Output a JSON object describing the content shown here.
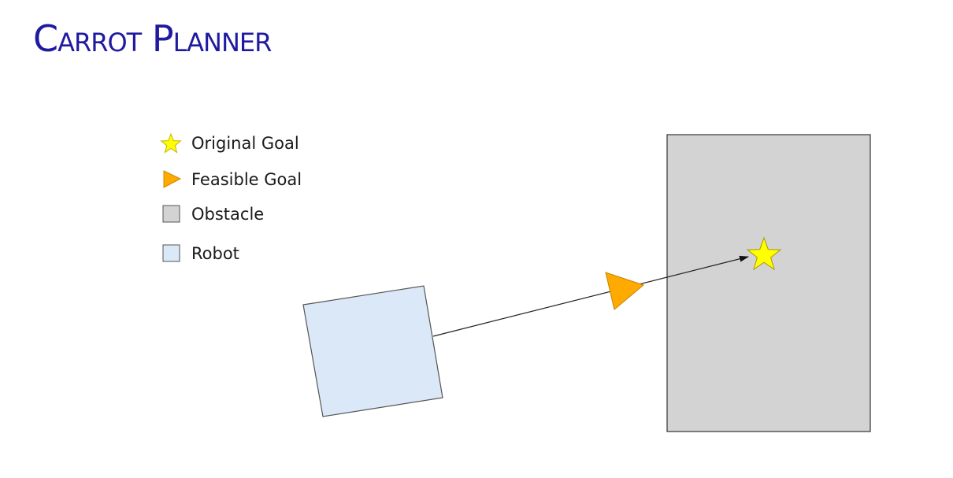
{
  "title": "Carrot Planner",
  "legend": [
    {
      "label": "Original Goal",
      "icon": "star-icon",
      "color": "#ffff00"
    },
    {
      "label": "Feasible Goal",
      "icon": "triangle-icon",
      "color": "#ffaa00"
    },
    {
      "label": "Obstacle",
      "icon": "square-icon",
      "color": "#d3d3d3"
    },
    {
      "label": "Robot",
      "icon": "square-icon",
      "color": "#dbe8f8"
    }
  ],
  "colors": {
    "title": "#1f1aa0",
    "star": "#ffff00",
    "triangle": "#ffaa00",
    "obstacle": "#d3d3d3",
    "robot": "#dbe8f8"
  }
}
